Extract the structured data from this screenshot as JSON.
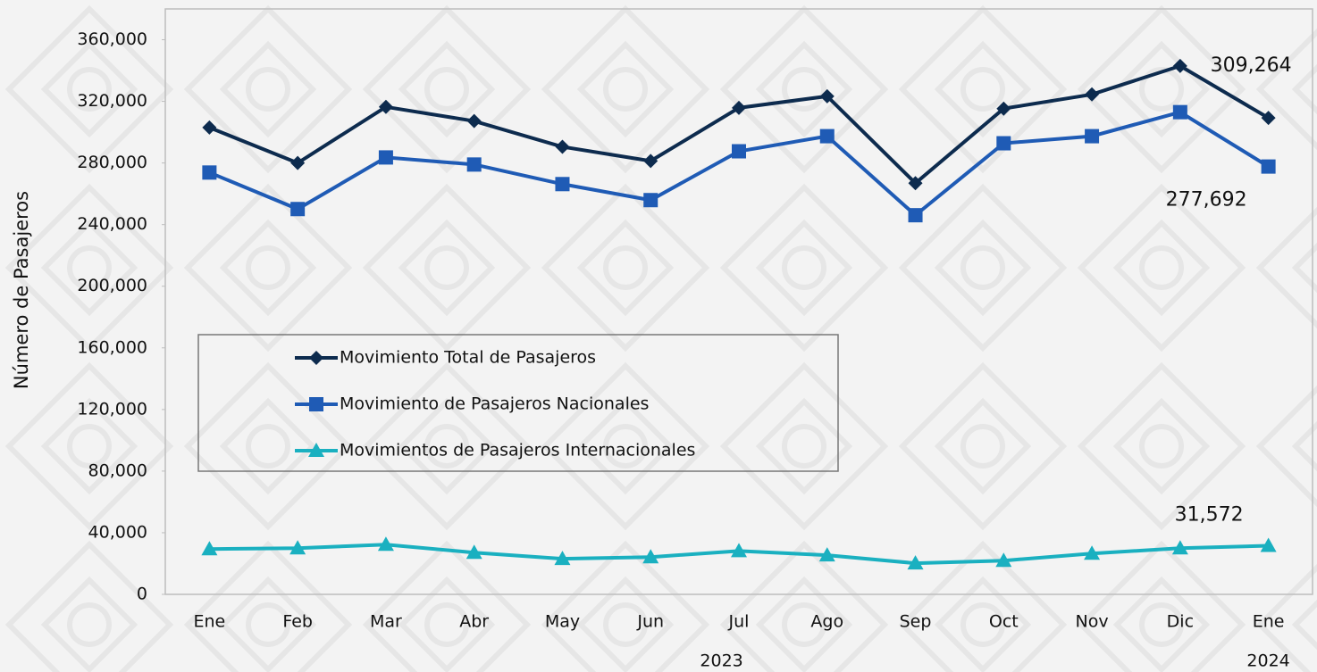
{
  "chart_data": {
    "type": "line",
    "y_label": "Número de Pasajeros",
    "categories": [
      "Ene",
      "Feb",
      "Mar",
      "Abr",
      "May",
      "Jun",
      "Jul",
      "Ago",
      "Sep",
      "Oct",
      "Nov",
      "Dic",
      "Ene"
    ],
    "year_labels": [
      "2023",
      "2024"
    ],
    "ylim": [
      0,
      380000
    ],
    "yticks": [
      0,
      {
        "value": 40000,
        "label": "40,000"
      },
      {
        "value": 80000,
        "label": "80,000"
      },
      {
        "value": 120000,
        "label": "120,000"
      },
      {
        "value": 160000,
        "label": "160,000"
      },
      {
        "value": 200000,
        "label": "200,000"
      },
      {
        "value": 240000,
        "label": "240,000"
      },
      {
        "value": 280000,
        "label": "280,000"
      },
      {
        "value": 320000,
        "label": "320,000"
      },
      {
        "value": 360000,
        "label": "360,000"
      }
    ],
    "legend": "center-left",
    "series": [
      {
        "name": "Movimiento Total de Pasajeros",
        "color": "#0d2b4e",
        "marker": "diamond",
        "values": [
          303000,
          280000,
          316400,
          307200,
          290500,
          281300,
          315800,
          323300,
          266900,
          315300,
          324500,
          343000,
          309264
        ],
        "value_labels": [
          null,
          null,
          null,
          null,
          null,
          null,
          null,
          null,
          null,
          null,
          null,
          null,
          "309,264"
        ]
      },
      {
        "name": "Movimiento de Pasajeros Nacionales",
        "color": "#1f5bb5",
        "marker": "square",
        "values": [
          273800,
          250100,
          283600,
          279000,
          266300,
          255900,
          287600,
          297400,
          246100,
          292800,
          297400,
          313000,
          277692
        ],
        "value_labels": [
          null,
          null,
          null,
          null,
          null,
          null,
          null,
          null,
          null,
          null,
          null,
          null,
          "277,692"
        ]
      },
      {
        "name": "Movimientos de Pasajeros Internacionales",
        "color": "#1ab0c0",
        "marker": "triangle",
        "values": [
          29400,
          30000,
          32300,
          27100,
          23100,
          24200,
          28200,
          25400,
          20200,
          21900,
          26500,
          30000,
          31572
        ],
        "value_labels": [
          null,
          null,
          null,
          null,
          null,
          null,
          null,
          null,
          null,
          null,
          null,
          null,
          "31,572"
        ]
      }
    ]
  }
}
